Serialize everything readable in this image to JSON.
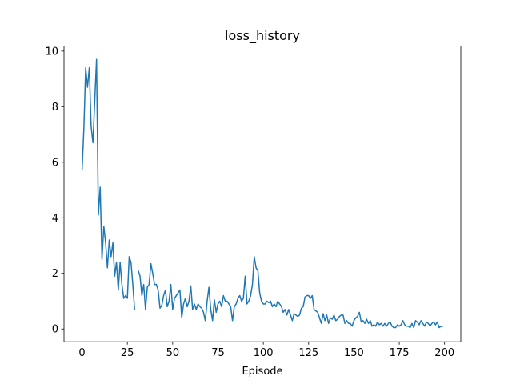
{
  "chart_data": {
    "type": "line",
    "title": "loss_history",
    "x_label": "Episode",
    "x": [
      0,
      1,
      2,
      3,
      4,
      5,
      6,
      7,
      8,
      9,
      10,
      11,
      12,
      13,
      14,
      15,
      16,
      17,
      18,
      19,
      20,
      21,
      22,
      23,
      24,
      25,
      26,
      27,
      28,
      29,
      30,
      31,
      32,
      33,
      34,
      35,
      36,
      37,
      38,
      39,
      40,
      41,
      42,
      43,
      44,
      45,
      46,
      47,
      48,
      49,
      50,
      51,
      52,
      53,
      54,
      55,
      56,
      57,
      58,
      59,
      60,
      61,
      62,
      63,
      64,
      65,
      66,
      67,
      68,
      69,
      70,
      71,
      72,
      73,
      74,
      75,
      76,
      77,
      78,
      79,
      80,
      81,
      82,
      83,
      84,
      85,
      86,
      87,
      88,
      89,
      90,
      91,
      92,
      93,
      94,
      95,
      96,
      97,
      98,
      99,
      100,
      101,
      102,
      103,
      104,
      105,
      106,
      107,
      108,
      109,
      110,
      111,
      112,
      113,
      114,
      115,
      116,
      117,
      118,
      119,
      120,
      121,
      122,
      123,
      124,
      125,
      126,
      127,
      128,
      129,
      130,
      131,
      132,
      133,
      134,
      135,
      136,
      137,
      138,
      139,
      140,
      141,
      142,
      143,
      144,
      145,
      146,
      147,
      148,
      149,
      150,
      151,
      152,
      153,
      154,
      155,
      156,
      157,
      158,
      159,
      160,
      161,
      162,
      163,
      164,
      165,
      166,
      167,
      168,
      169,
      170,
      171,
      172,
      173,
      174,
      175,
      176,
      177,
      178,
      179,
      180,
      181,
      182,
      183,
      184,
      185,
      186,
      187,
      188,
      189,
      190,
      191,
      192,
      193,
      194,
      195,
      196,
      197,
      198,
      199
    ],
    "series": [
      {
        "name": "loss_history",
        "color": "#1f77b4",
        "values": [
          5.7,
          7.2,
          9.4,
          8.7,
          9.4,
          7.3,
          6.7,
          8.2,
          9.7,
          4.1,
          5.1,
          2.5,
          3.7,
          3.1,
          2.2,
          3.2,
          2.6,
          3.1,
          1.9,
          2.4,
          1.4,
          2.4,
          1.6,
          1.1,
          1.2,
          1.1,
          2.6,
          2.4,
          1.6,
          0.7,
          null,
          2.1,
          1.9,
          1.2,
          1.6,
          0.7,
          1.5,
          1.6,
          2.35,
          2.0,
          1.6,
          1.6,
          1.4,
          0.75,
          0.85,
          1.2,
          1.4,
          0.8,
          1.0,
          1.6,
          0.7,
          1.1,
          1.2,
          1.3,
          1.4,
          0.4,
          0.9,
          1.1,
          0.8,
          1.0,
          1.55,
          0.7,
          0.9,
          0.7,
          0.9,
          0.8,
          0.75,
          0.6,
          0.3,
          1.0,
          1.5,
          0.7,
          0.3,
          1.05,
          0.6,
          0.9,
          1.0,
          0.8,
          1.2,
          1.0,
          1.0,
          0.9,
          0.8,
          0.3,
          0.8,
          0.9,
          1.1,
          1.2,
          1.0,
          1.1,
          1.9,
          0.9,
          1.0,
          1.2,
          1.6,
          2.6,
          2.2,
          2.1,
          1.3,
          1.0,
          0.9,
          0.9,
          1.0,
          0.95,
          1.0,
          0.8,
          0.9,
          0.8,
          1.0,
          0.9,
          0.8,
          0.6,
          0.7,
          0.5,
          0.7,
          0.5,
          0.3,
          0.55,
          0.5,
          0.45,
          0.5,
          0.75,
          0.8,
          1.15,
          1.2,
          1.2,
          1.1,
          1.2,
          0.7,
          0.65,
          0.6,
          0.4,
          0.2,
          0.55,
          0.3,
          0.5,
          0.2,
          0.4,
          0.35,
          0.5,
          0.3,
          0.35,
          0.45,
          0.5,
          0.5,
          0.2,
          0.3,
          0.2,
          0.2,
          0.1,
          0.3,
          0.4,
          0.45,
          0.6,
          0.25,
          0.3,
          0.2,
          0.35,
          0.2,
          0.3,
          0.1,
          0.15,
          0.1,
          0.25,
          0.15,
          0.2,
          0.1,
          0.2,
          0.1,
          0.2,
          0.25,
          0.1,
          0.05,
          0.05,
          0.15,
          0.1,
          0.15,
          0.3,
          0.15,
          0.1,
          0.1,
          0.05,
          0.2,
          0.05,
          0.3,
          0.25,
          0.15,
          0.3,
          0.2,
          0.1,
          0.25,
          0.2,
          0.1,
          0.2,
          0.25,
          0.15,
          0.25,
          0.05,
          0.1,
          0.08
        ]
      }
    ],
    "xlim": [
      -9.95,
      208.95
    ],
    "xticks": [
      0,
      25,
      50,
      75,
      100,
      125,
      150,
      175,
      200
    ],
    "ylim": [
      -0.46,
      10.18
    ],
    "yticks": [
      0,
      2,
      4,
      6,
      8,
      10
    ],
    "grid": false
  }
}
